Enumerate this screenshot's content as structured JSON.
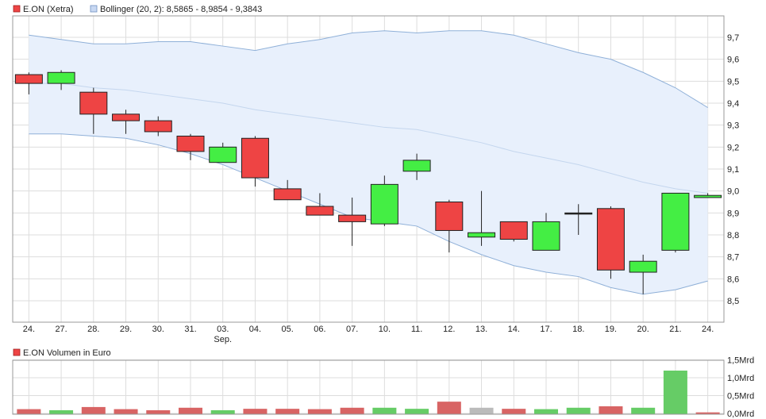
{
  "colors": {
    "up": "#44ee44",
    "down": "#ee4444",
    "neutral": "#bbbbbb",
    "band_fill": "#e8f0fc",
    "band_line": "#8fb0d8",
    "mid_line": "#c4d6ee",
    "grid": "#dddddd",
    "vol_up": "#66cc66",
    "vol_down": "#d86464"
  },
  "legend": {
    "price_label": "E.ON (Xetra)",
    "bollinger_label": "Bollinger (20, 2): 8,5865 - 8,9854 - 9,3843",
    "volume_label": "E.ON Volumen in Euro"
  },
  "chart_data": [
    {
      "type": "candlestick",
      "y_ticks": [
        "9,7",
        "9,6",
        "9,5",
        "9,4",
        "9,3",
        "9,2",
        "9,1",
        "9,0",
        "8,9",
        "8,8",
        "8,7",
        "8,6",
        "8,5"
      ],
      "ylim": [
        8.46,
        9.75
      ],
      "x_labels": [
        "24.",
        "27.",
        "28.",
        "29.",
        "30.",
        "31.",
        "03.",
        "04.",
        "05.",
        "06.",
        "07.",
        "10.",
        "11.",
        "12.",
        "13.",
        "14.",
        "17.",
        "18.",
        "19.",
        "20.",
        "21.",
        "24."
      ],
      "x_sublabel": "Sep.",
      "x_sublabel_index": 6,
      "candles": [
        {
          "o": 9.53,
          "h": 9.54,
          "l": 9.44,
          "c": 9.49
        },
        {
          "o": 9.49,
          "h": 9.55,
          "l": 9.46,
          "c": 9.54
        },
        {
          "o": 9.45,
          "h": 9.47,
          "l": 9.26,
          "c": 9.35
        },
        {
          "o": 9.35,
          "h": 9.37,
          "l": 9.26,
          "c": 9.32
        },
        {
          "o": 9.32,
          "h": 9.34,
          "l": 9.25,
          "c": 9.27
        },
        {
          "o": 9.25,
          "h": 9.26,
          "l": 9.14,
          "c": 9.18
        },
        {
          "o": 9.13,
          "h": 9.22,
          "l": 9.13,
          "c": 9.2
        },
        {
          "o": 9.24,
          "h": 9.25,
          "l": 9.02,
          "c": 9.06
        },
        {
          "o": 9.01,
          "h": 9.05,
          "l": 8.96,
          "c": 8.96
        },
        {
          "o": 8.93,
          "h": 8.99,
          "l": 8.89,
          "c": 8.89
        },
        {
          "o": 8.89,
          "h": 8.97,
          "l": 8.75,
          "c": 8.86
        },
        {
          "o": 8.85,
          "h": 9.07,
          "l": 8.84,
          "c": 9.03
        },
        {
          "o": 9.09,
          "h": 9.17,
          "l": 9.05,
          "c": 9.14
        },
        {
          "o": 8.95,
          "h": 8.96,
          "l": 8.72,
          "c": 8.82
        },
        {
          "o": 8.79,
          "h": 9.0,
          "l": 8.75,
          "c": 8.81
        },
        {
          "o": 8.86,
          "h": 8.86,
          "l": 8.77,
          "c": 8.78
        },
        {
          "o": 8.73,
          "h": 8.9,
          "l": 8.73,
          "c": 8.86
        },
        {
          "o": 8.9,
          "h": 8.94,
          "l": 8.8,
          "c": 8.9
        },
        {
          "o": 8.92,
          "h": 8.93,
          "l": 8.6,
          "c": 8.64
        },
        {
          "o": 8.63,
          "h": 8.71,
          "l": 8.53,
          "c": 8.68
        },
        {
          "o": 8.73,
          "h": 8.99,
          "l": 8.72,
          "c": 8.99
        },
        {
          "o": 8.97,
          "h": 8.99,
          "l": 8.97,
          "c": 8.98
        }
      ],
      "bollinger": {
        "upper": [
          9.71,
          9.69,
          9.67,
          9.67,
          9.68,
          9.68,
          9.66,
          9.64,
          9.67,
          9.69,
          9.72,
          9.73,
          9.72,
          9.73,
          9.73,
          9.71,
          9.67,
          9.63,
          9.6,
          9.54,
          9.47,
          9.38
        ],
        "middle": [
          9.49,
          9.49,
          9.47,
          9.46,
          9.44,
          9.42,
          9.4,
          9.37,
          9.35,
          9.33,
          9.31,
          9.29,
          9.28,
          9.25,
          9.22,
          9.18,
          9.15,
          9.12,
          9.08,
          9.04,
          9.01,
          8.99
        ],
        "lower": [
          9.26,
          9.26,
          9.25,
          9.24,
          9.21,
          9.17,
          9.12,
          9.06,
          9.0,
          8.94,
          8.88,
          8.86,
          8.84,
          8.77,
          8.71,
          8.66,
          8.63,
          8.61,
          8.56,
          8.53,
          8.55,
          8.59
        ]
      }
    },
    {
      "type": "bar",
      "y_ticks": [
        "1,5Mrd",
        "1,0Mrd",
        "0,5Mrd",
        "0,0Mrd"
      ],
      "ylim": [
        0,
        1.5
      ],
      "values": [
        0.12,
        0.09,
        0.18,
        0.12,
        0.09,
        0.16,
        0.09,
        0.13,
        0.13,
        0.12,
        0.16,
        0.16,
        0.13,
        0.33,
        0.16,
        0.13,
        0.12,
        0.16,
        0.2,
        0.16,
        1.2,
        0.03
      ],
      "directions": [
        "down",
        "up",
        "down",
        "down",
        "down",
        "down",
        "up",
        "down",
        "down",
        "down",
        "down",
        "up",
        "up",
        "down",
        "neutral",
        "down",
        "up",
        "up",
        "down",
        "up",
        "up",
        "down"
      ]
    }
  ]
}
